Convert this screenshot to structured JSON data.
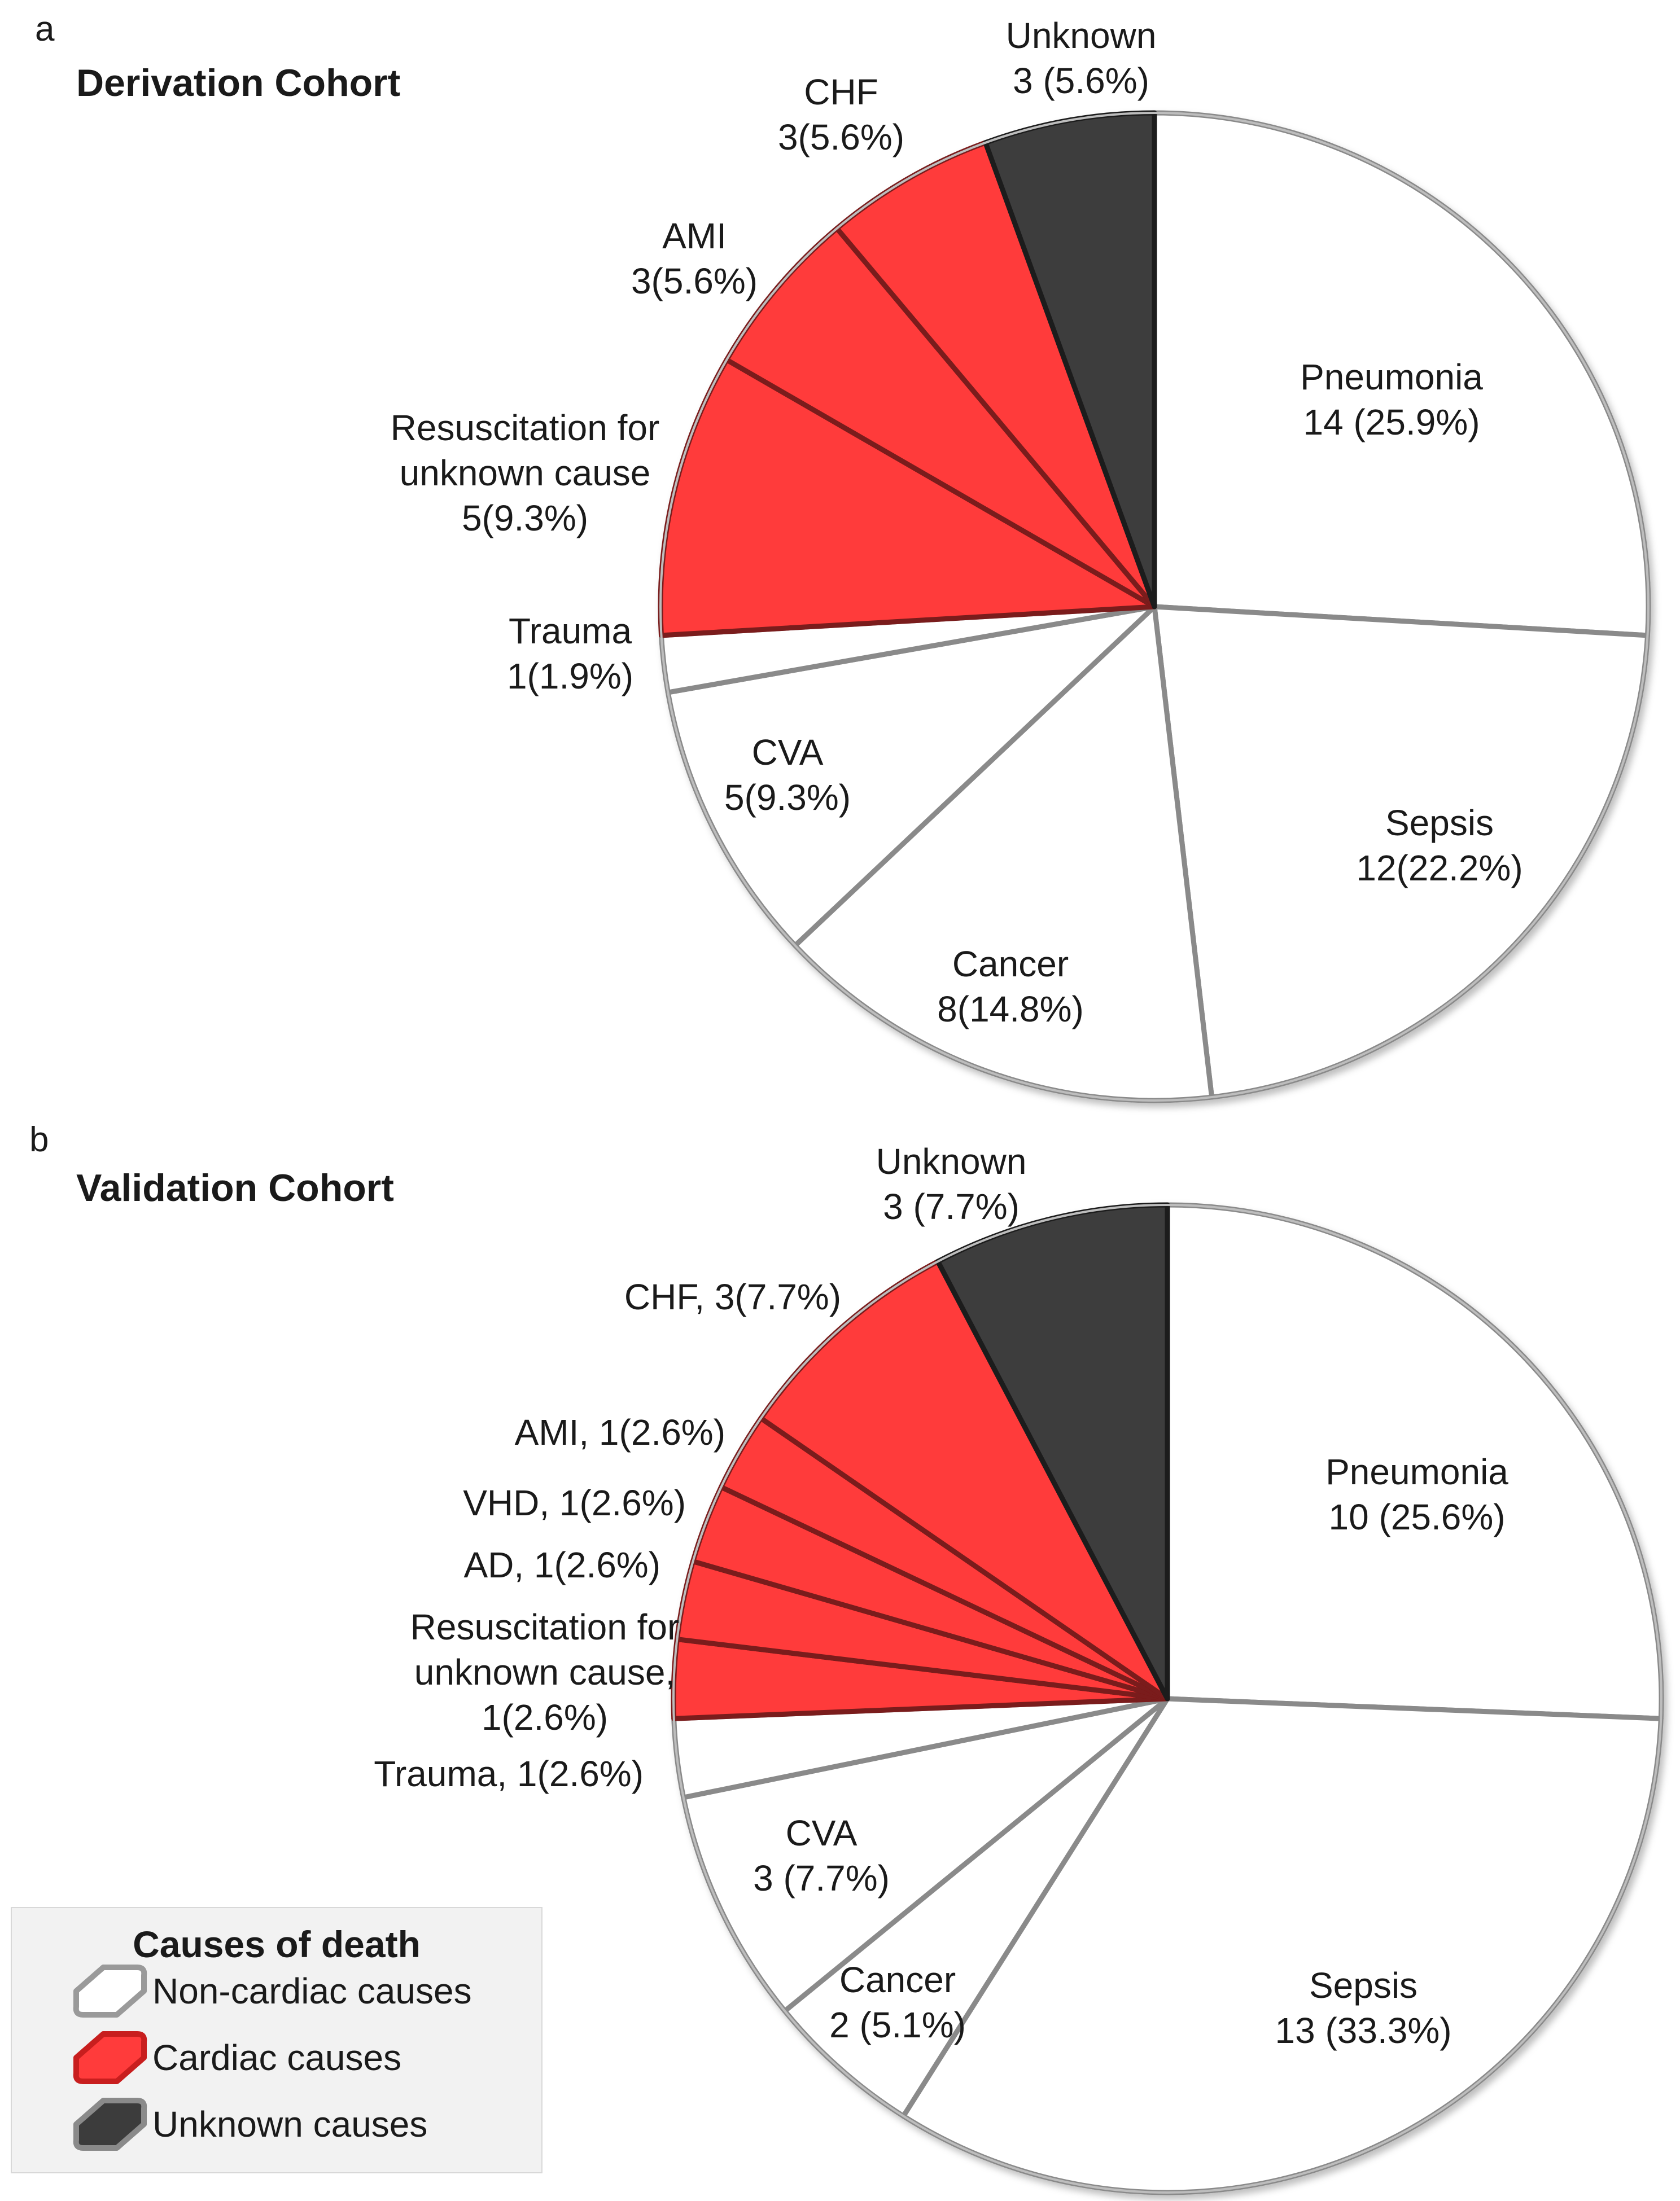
{
  "colors": {
    "non_cardiac": "#ffffff",
    "cardiac": "#ff3b3b",
    "unknown": "#3c3c3c",
    "rim": "#8a8a8a",
    "legend_bg": "#f2f2f2"
  },
  "legend": {
    "title": "Causes of death",
    "items": [
      {
        "label": "Non-cardiac causes",
        "category": "non_cardiac"
      },
      {
        "label": "Cardiac causes",
        "category": "cardiac"
      },
      {
        "label": "Unknown  causes",
        "category": "unknown"
      }
    ]
  },
  "chart_data": [
    {
      "type": "pie",
      "panel": "a",
      "title": "Derivation Cohort",
      "slices": [
        {
          "name": "Pneumonia",
          "value": 14,
          "percent": 25.9,
          "category": "non_cardiac",
          "label": [
            "Pneumonia",
            "14 (25.9%)"
          ]
        },
        {
          "name": "Sepsis",
          "value": 12,
          "percent": 22.2,
          "category": "non_cardiac",
          "label": [
            "Sepsis",
            "12(22.2%)"
          ]
        },
        {
          "name": "Cancer",
          "value": 8,
          "percent": 14.8,
          "category": "non_cardiac",
          "label": [
            "Cancer",
            "8(14.8%)"
          ]
        },
        {
          "name": "CVA",
          "value": 5,
          "percent": 9.3,
          "category": "non_cardiac",
          "label": [
            "CVA",
            "5(9.3%)"
          ]
        },
        {
          "name": "Trauma",
          "value": 1,
          "percent": 1.9,
          "category": "non_cardiac",
          "label": [
            "Trauma",
            "1(1.9%)"
          ]
        },
        {
          "name": "Resuscitation for unknown cause",
          "value": 5,
          "percent": 9.3,
          "category": "cardiac",
          "label": [
            "Resuscitation for",
            "unknown  cause",
            "5(9.3%)"
          ]
        },
        {
          "name": "AMI",
          "value": 3,
          "percent": 5.6,
          "category": "cardiac",
          "label": [
            "AMI",
            "3(5.6%)"
          ]
        },
        {
          "name": "CHF",
          "value": 3,
          "percent": 5.6,
          "category": "cardiac",
          "label": [
            "CHF",
            "3(5.6%)"
          ]
        },
        {
          "name": "Unknown",
          "value": 3,
          "percent": 5.6,
          "category": "unknown",
          "label": [
            "Unknown",
            "3 (5.6%)"
          ]
        }
      ]
    },
    {
      "type": "pie",
      "panel": "b",
      "title": "Validation Cohort",
      "slices": [
        {
          "name": "Pneumonia",
          "value": 10,
          "percent": 25.6,
          "category": "non_cardiac",
          "label": [
            "Pneumonia",
            "10 (25.6%)"
          ]
        },
        {
          "name": "Sepsis",
          "value": 13,
          "percent": 33.3,
          "category": "non_cardiac",
          "label": [
            "Sepsis",
            "13 (33.3%)"
          ]
        },
        {
          "name": "Cancer",
          "value": 2,
          "percent": 5.1,
          "category": "non_cardiac",
          "label": [
            "Cancer",
            "2 (5.1%)"
          ]
        },
        {
          "name": "CVA",
          "value": 3,
          "percent": 7.7,
          "category": "non_cardiac",
          "label": [
            "CVA",
            "3 (7.7%)"
          ]
        },
        {
          "name": "Trauma",
          "value": 1,
          "percent": 2.6,
          "category": "non_cardiac",
          "label": [
            "Trauma,  1(2.6%)"
          ]
        },
        {
          "name": "Resuscitation for unknown cause",
          "value": 1,
          "percent": 2.6,
          "category": "cardiac",
          "label": [
            "Resuscitation for",
            "unknown  cause,",
            "1(2.6%)"
          ]
        },
        {
          "name": "AD",
          "value": 1,
          "percent": 2.6,
          "category": "cardiac",
          "label": [
            "AD, 1(2.6%)"
          ]
        },
        {
          "name": "VHD",
          "value": 1,
          "percent": 2.6,
          "category": "cardiac",
          "label": [
            "VHD, 1(2.6%)"
          ]
        },
        {
          "name": "AMI",
          "value": 1,
          "percent": 2.6,
          "category": "cardiac",
          "label": [
            "AMI, 1(2.6%)"
          ]
        },
        {
          "name": "CHF",
          "value": 3,
          "percent": 7.7,
          "category": "cardiac",
          "label": [
            "CHF, 3(7.7%)"
          ]
        },
        {
          "name": "Unknown",
          "value": 3,
          "percent": 7.7,
          "category": "unknown",
          "label": [
            "Unknown",
            "3 (7.7%)"
          ]
        }
      ]
    }
  ]
}
